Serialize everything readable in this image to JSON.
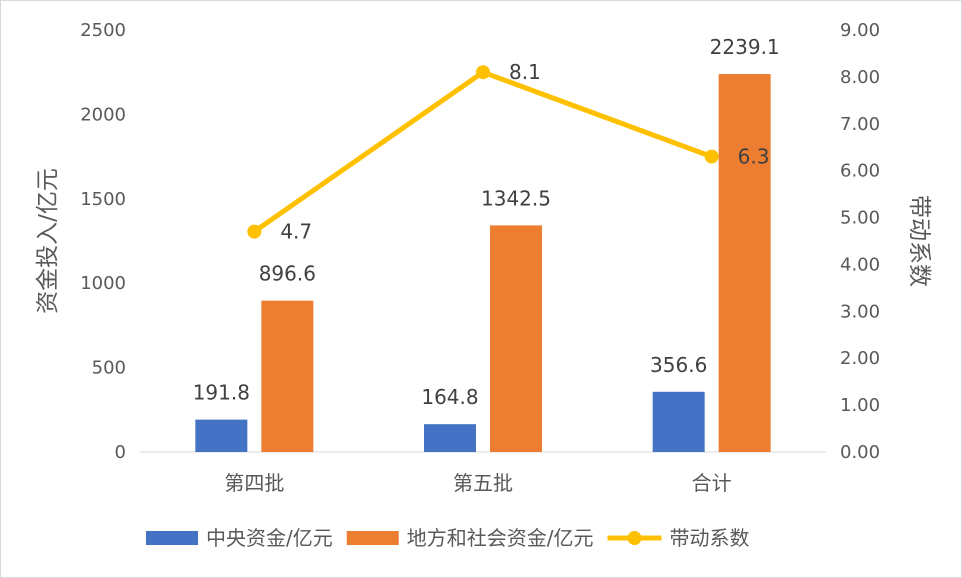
{
  "chart_data": {
    "type": "bar",
    "categories": [
      "第四批",
      "第五批",
      "合计"
    ],
    "series": [
      {
        "name": "中央资金/亿元",
        "type": "bar",
        "axis": "left",
        "color": "#4472c4",
        "values": [
          191.8,
          164.8,
          356.6
        ],
        "labels": [
          "191.8",
          "164.8",
          "356.6"
        ]
      },
      {
        "name": "地方和社会资金/亿元",
        "type": "bar",
        "axis": "left",
        "color": "#ed7d31",
        "values": [
          896.6,
          1342.5,
          2239.1
        ],
        "labels": [
          "896.6",
          "1342.5",
          "2239.1"
        ]
      },
      {
        "name": "带动系数",
        "type": "line",
        "axis": "right",
        "color": "#ffc000",
        "values": [
          4.7,
          8.1,
          6.3
        ],
        "labels": [
          "4.7",
          "8.1",
          "6.3"
        ]
      }
    ],
    "ylabel": "资金投入/亿元",
    "y2label": "带动系数",
    "ylim": [
      0,
      2500
    ],
    "y2lim": [
      0,
      9
    ],
    "yticks": [
      "0",
      "500",
      "1000",
      "1500",
      "2000",
      "2500"
    ],
    "y2ticks": [
      "0.00",
      "1.00",
      "2.00",
      "3.00",
      "4.00",
      "5.00",
      "6.00",
      "7.00",
      "8.00",
      "9.00"
    ],
    "grid": false,
    "legend": "bottom"
  }
}
